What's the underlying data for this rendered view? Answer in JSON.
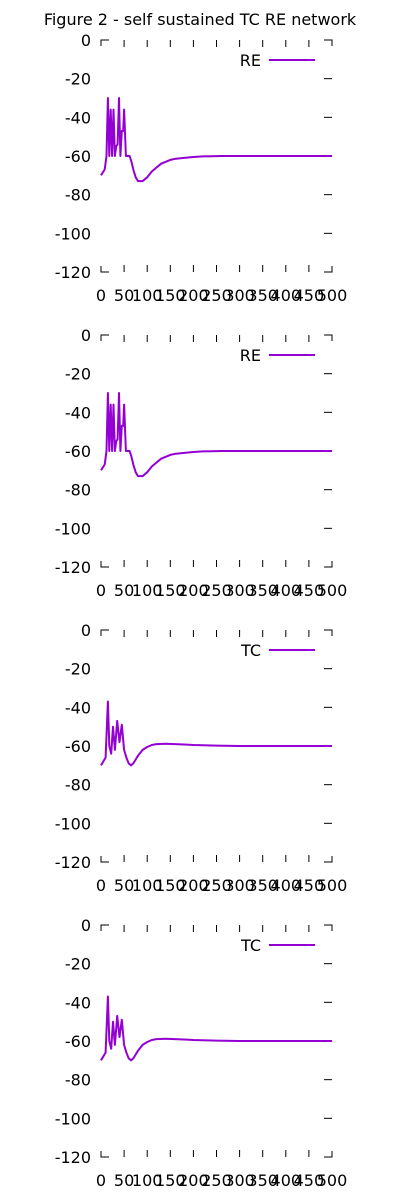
{
  "title": "Figure 2 - self sustained TC RE network",
  "colors": {
    "series": "#9400d3",
    "axis": "#000000",
    "background": "#ffffff"
  },
  "chart_data": [
    {
      "type": "line",
      "legend_position": "top-right",
      "xlim": [
        0,
        500
      ],
      "ylim": [
        -120,
        0
      ],
      "xticks": [
        "0",
        "50",
        "100",
        "150",
        "200",
        "250",
        "300",
        "350",
        "400",
        "450",
        "500"
      ],
      "yticks": [
        "0",
        "-20",
        "-40",
        "-60",
        "-80",
        "-100",
        "-120"
      ],
      "series": [
        {
          "name": "RE",
          "x": [
            0,
            8,
            12,
            15,
            18,
            21,
            24,
            27,
            30,
            33,
            36,
            39,
            42,
            45,
            48,
            50,
            54,
            58,
            62,
            66,
            70,
            75,
            80,
            85,
            90,
            95,
            100,
            110,
            120,
            130,
            140,
            150,
            160,
            180,
            200,
            220,
            240,
            260,
            280,
            300,
            350,
            400,
            450,
            500
          ],
          "y": [
            -70,
            -67,
            -60,
            -30,
            -60,
            -36,
            -60,
            -36,
            -60,
            -55,
            -54,
            -30,
            -60,
            -47,
            -47,
            -36,
            -60,
            -60,
            -60,
            -63,
            -67,
            -71,
            -73,
            -73,
            -73,
            -72,
            -71,
            -68,
            -66,
            -64,
            -63,
            -62,
            -61.5,
            -61,
            -60.5,
            -60.2,
            -60.1,
            -60,
            -60,
            -60,
            -60,
            -60,
            -60,
            -60
          ]
        }
      ]
    },
    {
      "type": "line",
      "legend_position": "top-right",
      "xlim": [
        0,
        500
      ],
      "ylim": [
        -120,
        0
      ],
      "xticks": [
        "0",
        "50",
        "100",
        "150",
        "200",
        "250",
        "300",
        "350",
        "400",
        "450",
        "500"
      ],
      "yticks": [
        "0",
        "-20",
        "-40",
        "-60",
        "-80",
        "-100",
        "-120"
      ],
      "series": [
        {
          "name": "RE",
          "x": [
            0,
            8,
            12,
            15,
            18,
            21,
            24,
            27,
            30,
            33,
            36,
            39,
            42,
            45,
            48,
            50,
            54,
            58,
            62,
            66,
            70,
            75,
            80,
            85,
            90,
            95,
            100,
            110,
            120,
            130,
            140,
            150,
            160,
            180,
            200,
            220,
            240,
            260,
            280,
            300,
            350,
            400,
            450,
            500
          ],
          "y": [
            -70,
            -67,
            -60,
            -30,
            -60,
            -36,
            -60,
            -36,
            -60,
            -55,
            -54,
            -30,
            -60,
            -47,
            -47,
            -36,
            -60,
            -60,
            -60,
            -63,
            -67,
            -71,
            -73,
            -73,
            -73,
            -72,
            -71,
            -68,
            -66,
            -64,
            -63,
            -62,
            -61.5,
            -61,
            -60.5,
            -60.2,
            -60.1,
            -60,
            -60,
            -60,
            -60,
            -60,
            -60,
            -60
          ]
        }
      ]
    },
    {
      "type": "line",
      "legend_position": "top-right",
      "xlim": [
        0,
        500
      ],
      "ylim": [
        -120,
        0
      ],
      "xticks": [
        "0",
        "50",
        "100",
        "150",
        "200",
        "250",
        "300",
        "350",
        "400",
        "450",
        "500"
      ],
      "yticks": [
        "0",
        "-20",
        "-40",
        "-60",
        "-80",
        "-100",
        "-120"
      ],
      "series": [
        {
          "name": "TC",
          "x": [
            0,
            10,
            15,
            18,
            22,
            26,
            30,
            35,
            40,
            45,
            50,
            55,
            60,
            65,
            70,
            75,
            80,
            90,
            100,
            110,
            120,
            140,
            160,
            180,
            200,
            250,
            300,
            350,
            400,
            450,
            500
          ],
          "y": [
            -70,
            -66,
            -37,
            -60,
            -64,
            -50,
            -62,
            -47,
            -58,
            -49,
            -62,
            -66,
            -69,
            -70,
            -69,
            -67,
            -65,
            -62,
            -60.5,
            -59.5,
            -59,
            -58.8,
            -59,
            -59.2,
            -59.5,
            -59.8,
            -60,
            -60,
            -60,
            -60,
            -60
          ]
        }
      ]
    },
    {
      "type": "line",
      "legend_position": "top-right",
      "xlim": [
        0,
        500
      ],
      "ylim": [
        -120,
        0
      ],
      "xticks": [
        "0",
        "50",
        "100",
        "150",
        "200",
        "250",
        "300",
        "350",
        "400",
        "450",
        "500"
      ],
      "yticks": [
        "0",
        "-20",
        "-40",
        "-60",
        "-80",
        "-100",
        "-120"
      ],
      "series": [
        {
          "name": "TC",
          "x": [
            0,
            10,
            15,
            18,
            22,
            26,
            30,
            35,
            40,
            45,
            50,
            55,
            60,
            65,
            70,
            75,
            80,
            90,
            100,
            110,
            120,
            140,
            160,
            180,
            200,
            250,
            300,
            350,
            400,
            450,
            500
          ],
          "y": [
            -70,
            -66,
            -37,
            -60,
            -64,
            -50,
            -62,
            -47,
            -58,
            -49,
            -62,
            -66,
            -69,
            -70,
            -69,
            -67,
            -65,
            -62,
            -60.5,
            -59.5,
            -59,
            -58.8,
            -59,
            -59.2,
            -59.5,
            -59.8,
            -60,
            -60,
            -60,
            -60,
            -60
          ]
        }
      ]
    }
  ]
}
